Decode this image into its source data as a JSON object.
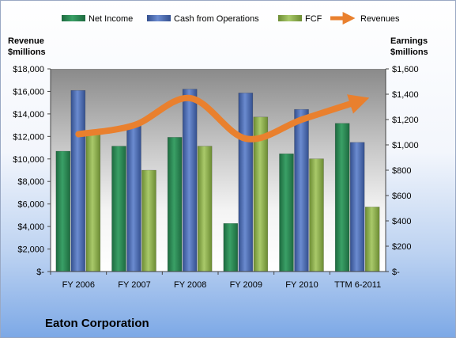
{
  "company": "Eaton Corporation",
  "chart_data": {
    "type": "bar",
    "title": "Eaton Corporation",
    "categories": [
      "FY 2006",
      "FY 2007",
      "FY 2008",
      "FY 2009",
      "FY 2010",
      "TTM 6-2011"
    ],
    "y_left": {
      "label_line1": "Revenue",
      "label_line2": "$millions",
      "range": [
        0,
        18000
      ],
      "ticks": [
        0,
        2000,
        4000,
        6000,
        8000,
        10000,
        12000,
        14000,
        16000,
        18000
      ],
      "tick_labels": [
        "$-",
        "$2,000",
        "$4,000",
        "$6,000",
        "$8,000",
        "$10,000",
        "$12,000",
        "$14,000",
        "$16,000",
        "$18,000"
      ]
    },
    "y_right": {
      "label_line1": "Earnings",
      "label_line2": "$millions",
      "range": [
        0,
        1600
      ],
      "ticks": [
        0,
        200,
        400,
        600,
        800,
        1000,
        1200,
        1400,
        1600
      ],
      "tick_labels": [
        "$-",
        "$200",
        "$400",
        "$600",
        "$800",
        "$1,000",
        "$1,200",
        "$1,400",
        "$1,600"
      ]
    },
    "series": [
      {
        "name": "Net Income",
        "kind": "bar",
        "axis": "right",
        "color": "#2E8B57",
        "values": [
          950,
          990,
          1060,
          380,
          930,
          1170
        ]
      },
      {
        "name": "Cash from Operations",
        "kind": "bar",
        "axis": "right",
        "color": "#4F6FB5",
        "values": [
          1430,
          1160,
          1440,
          1410,
          1280,
          1020
        ]
      },
      {
        "name": "FCF",
        "kind": "bar",
        "axis": "right",
        "color": "#8DB04A",
        "values": [
          1090,
          800,
          990,
          1220,
          890,
          510
        ]
      },
      {
        "name": "Revenues",
        "kind": "line",
        "axis": "left",
        "color": "#E9802E",
        "values": [
          12200,
          13000,
          15400,
          11800,
          13500,
          15100
        ]
      }
    ],
    "legend_position": "top",
    "grid": false
  }
}
